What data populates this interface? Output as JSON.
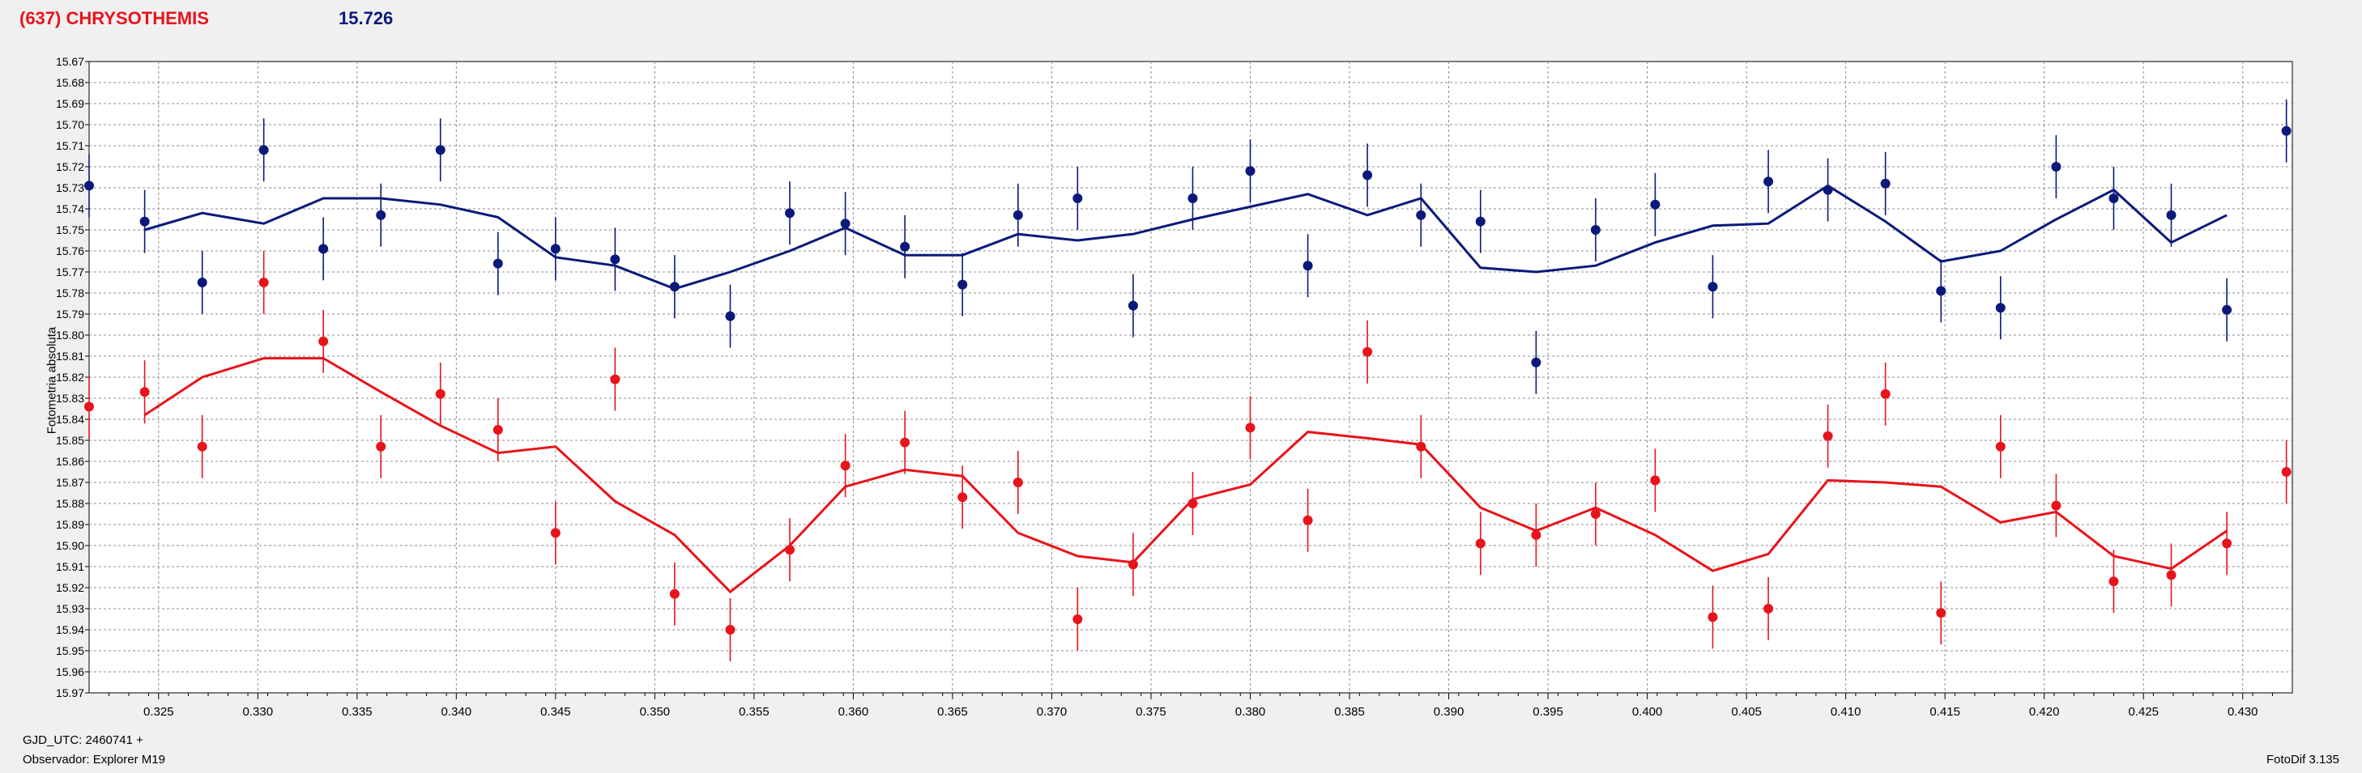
{
  "header": {
    "object": "(637) CHRYSOTHEMIS",
    "magnitude": "15.726",
    "object_color": "#e8141b",
    "magnitude_color": "#0b1a7a"
  },
  "footer": {
    "gjd": "GJD_UTC: 2460741 +",
    "observer": "Observador: Explorer M19",
    "software": "FotoDif 3.135"
  },
  "chart_data": {
    "type": "scatter",
    "title": "",
    "xlabel": "",
    "ylabel": "Fotometria absoluta",
    "xlim": [
      0.3215,
      0.4325
    ],
    "ylim": [
      15.67,
      15.97
    ],
    "y_inverted": true,
    "grid": true,
    "x_ticks": [
      "0.325",
      "0.330",
      "0.335",
      "0.340",
      "0.345",
      "0.350",
      "0.355",
      "0.360",
      "0.365",
      "0.370",
      "0.375",
      "0.380",
      "0.385",
      "0.390",
      "0.395",
      "0.400",
      "0.405",
      "0.410",
      "0.415",
      "0.420",
      "0.425",
      "0.430"
    ],
    "y_ticks": [
      "15.67",
      "15.68",
      "15.69",
      "15.70",
      "15.71",
      "15.72",
      "15.73",
      "15.74",
      "15.75",
      "15.76",
      "15.77",
      "15.78",
      "15.79",
      "15.80",
      "15.81",
      "15.82",
      "15.83",
      "15.84",
      "15.85",
      "15.86",
      "15.87",
      "15.88",
      "15.89",
      "15.90",
      "15.91",
      "15.92",
      "15.93",
      "15.94",
      "15.95",
      "15.96",
      "15.97"
    ],
    "series": [
      {
        "color": "#0b1a7a",
        "error_bar": 0.015,
        "points": [
          [
            0.3215,
            15.729
          ],
          [
            0.3243,
            15.746
          ],
          [
            0.3272,
            15.775
          ],
          [
            0.3303,
            15.712
          ],
          [
            0.3333,
            15.759
          ],
          [
            0.3362,
            15.743
          ],
          [
            0.3392,
            15.712
          ],
          [
            0.3421,
            15.766
          ],
          [
            0.345,
            15.759
          ],
          [
            0.348,
            15.764
          ],
          [
            0.351,
            15.777
          ],
          [
            0.3538,
            15.791
          ],
          [
            0.3568,
            15.742
          ],
          [
            0.3596,
            15.747
          ],
          [
            0.3626,
            15.758
          ],
          [
            0.3655,
            15.776
          ],
          [
            0.3683,
            15.743
          ],
          [
            0.3713,
            15.735
          ],
          [
            0.3741,
            15.786
          ],
          [
            0.3771,
            15.735
          ],
          [
            0.38,
            15.722
          ],
          [
            0.3829,
            15.767
          ],
          [
            0.3859,
            15.724
          ],
          [
            0.3886,
            15.743
          ],
          [
            0.3916,
            15.746
          ],
          [
            0.3944,
            15.813
          ],
          [
            0.3974,
            15.75
          ],
          [
            0.4004,
            15.738
          ],
          [
            0.4033,
            15.777
          ],
          [
            0.4061,
            15.727
          ],
          [
            0.4091,
            15.731
          ],
          [
            0.412,
            15.728
          ],
          [
            0.4148,
            15.779
          ],
          [
            0.4178,
            15.787
          ],
          [
            0.4206,
            15.72
          ],
          [
            0.4235,
            15.735
          ],
          [
            0.4264,
            15.743
          ],
          [
            0.4292,
            15.788
          ],
          [
            0.4322,
            15.703
          ]
        ],
        "fit": [
          [
            0.3243,
            15.75
          ],
          [
            0.3272,
            15.742
          ],
          [
            0.3303,
            15.747
          ],
          [
            0.3333,
            15.735
          ],
          [
            0.3362,
            15.735
          ],
          [
            0.3392,
            15.738
          ],
          [
            0.3421,
            15.744
          ],
          [
            0.345,
            15.763
          ],
          [
            0.348,
            15.767
          ],
          [
            0.351,
            15.778
          ],
          [
            0.3538,
            15.77
          ],
          [
            0.3568,
            15.76
          ],
          [
            0.3596,
            15.749
          ],
          [
            0.3626,
            15.762
          ],
          [
            0.3655,
            15.762
          ],
          [
            0.3683,
            15.752
          ],
          [
            0.3713,
            15.755
          ],
          [
            0.3741,
            15.752
          ],
          [
            0.3771,
            15.745
          ],
          [
            0.38,
            15.739
          ],
          [
            0.3829,
            15.733
          ],
          [
            0.3859,
            15.743
          ],
          [
            0.3886,
            15.735
          ],
          [
            0.3916,
            15.768
          ],
          [
            0.3944,
            15.77
          ],
          [
            0.3974,
            15.767
          ],
          [
            0.4004,
            15.756
          ],
          [
            0.4033,
            15.748
          ],
          [
            0.4061,
            15.747
          ],
          [
            0.4091,
            15.729
          ],
          [
            0.412,
            15.746
          ],
          [
            0.4148,
            15.765
          ],
          [
            0.4178,
            15.76
          ],
          [
            0.4206,
            15.745
          ],
          [
            0.4235,
            15.731
          ],
          [
            0.4264,
            15.756
          ],
          [
            0.4292,
            15.743
          ]
        ]
      },
      {
        "color": "#e8141b",
        "error_bar": 0.015,
        "points": [
          [
            0.3215,
            15.834
          ],
          [
            0.3243,
            15.827
          ],
          [
            0.3272,
            15.853
          ],
          [
            0.3303,
            15.775
          ],
          [
            0.3333,
            15.803
          ],
          [
            0.3362,
            15.853
          ],
          [
            0.3392,
            15.828
          ],
          [
            0.3421,
            15.845
          ],
          [
            0.345,
            15.894
          ],
          [
            0.348,
            15.821
          ],
          [
            0.351,
            15.923
          ],
          [
            0.3538,
            15.94
          ],
          [
            0.3568,
            15.902
          ],
          [
            0.3596,
            15.862
          ],
          [
            0.3626,
            15.851
          ],
          [
            0.3655,
            15.877
          ],
          [
            0.3683,
            15.87
          ],
          [
            0.3713,
            15.935
          ],
          [
            0.3741,
            15.909
          ],
          [
            0.3771,
            15.88
          ],
          [
            0.38,
            15.844
          ],
          [
            0.3829,
            15.888
          ],
          [
            0.3859,
            15.808
          ],
          [
            0.3886,
            15.853
          ],
          [
            0.3916,
            15.899
          ],
          [
            0.3944,
            15.895
          ],
          [
            0.3974,
            15.885
          ],
          [
            0.4004,
            15.869
          ],
          [
            0.4033,
            15.934
          ],
          [
            0.4061,
            15.93
          ],
          [
            0.4091,
            15.848
          ],
          [
            0.412,
            15.828
          ],
          [
            0.4148,
            15.932
          ],
          [
            0.4178,
            15.853
          ],
          [
            0.4206,
            15.881
          ],
          [
            0.4235,
            15.917
          ],
          [
            0.4264,
            15.914
          ],
          [
            0.4292,
            15.899
          ],
          [
            0.4322,
            15.865
          ]
        ],
        "fit": [
          [
            0.3243,
            15.838
          ],
          [
            0.3272,
            15.82
          ],
          [
            0.3303,
            15.811
          ],
          [
            0.3333,
            15.811
          ],
          [
            0.3362,
            15.827
          ],
          [
            0.3392,
            15.843
          ],
          [
            0.3421,
            15.856
          ],
          [
            0.345,
            15.853
          ],
          [
            0.348,
            15.879
          ],
          [
            0.351,
            15.895
          ],
          [
            0.3538,
            15.922
          ],
          [
            0.3568,
            15.9
          ],
          [
            0.3596,
            15.872
          ],
          [
            0.3626,
            15.864
          ],
          [
            0.3655,
            15.867
          ],
          [
            0.3683,
            15.894
          ],
          [
            0.3713,
            15.905
          ],
          [
            0.3741,
            15.908
          ],
          [
            0.3771,
            15.878
          ],
          [
            0.38,
            15.871
          ],
          [
            0.3829,
            15.846
          ],
          [
            0.3859,
            15.849
          ],
          [
            0.3886,
            15.852
          ],
          [
            0.3916,
            15.882
          ],
          [
            0.3944,
            15.893
          ],
          [
            0.3974,
            15.882
          ],
          [
            0.4004,
            15.895
          ],
          [
            0.4033,
            15.912
          ],
          [
            0.4061,
            15.904
          ],
          [
            0.4091,
            15.869
          ],
          [
            0.412,
            15.87
          ],
          [
            0.4148,
            15.872
          ],
          [
            0.4178,
            15.889
          ],
          [
            0.4206,
            15.884
          ],
          [
            0.4235,
            15.905
          ],
          [
            0.4264,
            15.911
          ],
          [
            0.4292,
            15.893
          ]
        ]
      }
    ]
  }
}
